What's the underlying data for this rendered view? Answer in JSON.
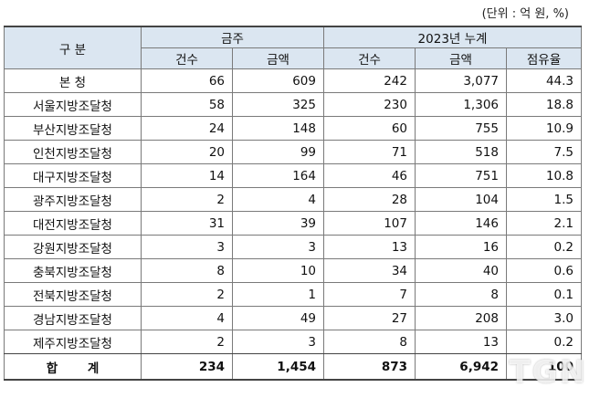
{
  "unit_note": "(단위 : 억 원, %)",
  "header": {
    "category": "구 분",
    "group_week": "금주",
    "group_cumulative": "2023년 누계",
    "count": "건수",
    "amount": "금액",
    "share": "점유율"
  },
  "rows": [
    {
      "name": "본 청",
      "week_count": "66",
      "week_amount": "609",
      "cum_count": "242",
      "cum_amount": "3,077",
      "share": "44.3"
    },
    {
      "name": "서울지방조달청",
      "week_count": "58",
      "week_amount": "325",
      "cum_count": "230",
      "cum_amount": "1,306",
      "share": "18.8"
    },
    {
      "name": "부산지방조달청",
      "week_count": "24",
      "week_amount": "148",
      "cum_count": "60",
      "cum_amount": "755",
      "share": "10.9"
    },
    {
      "name": "인천지방조달청",
      "week_count": "20",
      "week_amount": "99",
      "cum_count": "71",
      "cum_amount": "518",
      "share": "7.5"
    },
    {
      "name": "대구지방조달청",
      "week_count": "14",
      "week_amount": "164",
      "cum_count": "46",
      "cum_amount": "751",
      "share": "10.8"
    },
    {
      "name": "광주지방조달청",
      "week_count": "2",
      "week_amount": "4",
      "cum_count": "28",
      "cum_amount": "104",
      "share": "1.5"
    },
    {
      "name": "대전지방조달청",
      "week_count": "31",
      "week_amount": "39",
      "cum_count": "107",
      "cum_amount": "146",
      "share": "2.1"
    },
    {
      "name": "강원지방조달청",
      "week_count": "3",
      "week_amount": "3",
      "cum_count": "13",
      "cum_amount": "16",
      "share": "0.2"
    },
    {
      "name": "충북지방조달청",
      "week_count": "8",
      "week_amount": "10",
      "cum_count": "34",
      "cum_amount": "40",
      "share": "0.6"
    },
    {
      "name": "전북지방조달청",
      "week_count": "2",
      "week_amount": "1",
      "cum_count": "7",
      "cum_amount": "8",
      "share": "0.1"
    },
    {
      "name": "경남지방조달청",
      "week_count": "4",
      "week_amount": "49",
      "cum_count": "27",
      "cum_amount": "208",
      "share": "3.0"
    },
    {
      "name": "제주지방조달청",
      "week_count": "2",
      "week_amount": "3",
      "cum_count": "8",
      "cum_amount": "13",
      "share": "0.2"
    }
  ],
  "total": {
    "name": "합 계",
    "week_count": "234",
    "week_amount": "1,454",
    "cum_count": "873",
    "cum_amount": "6,942",
    "share": "100"
  },
  "watermark": "TGN"
}
